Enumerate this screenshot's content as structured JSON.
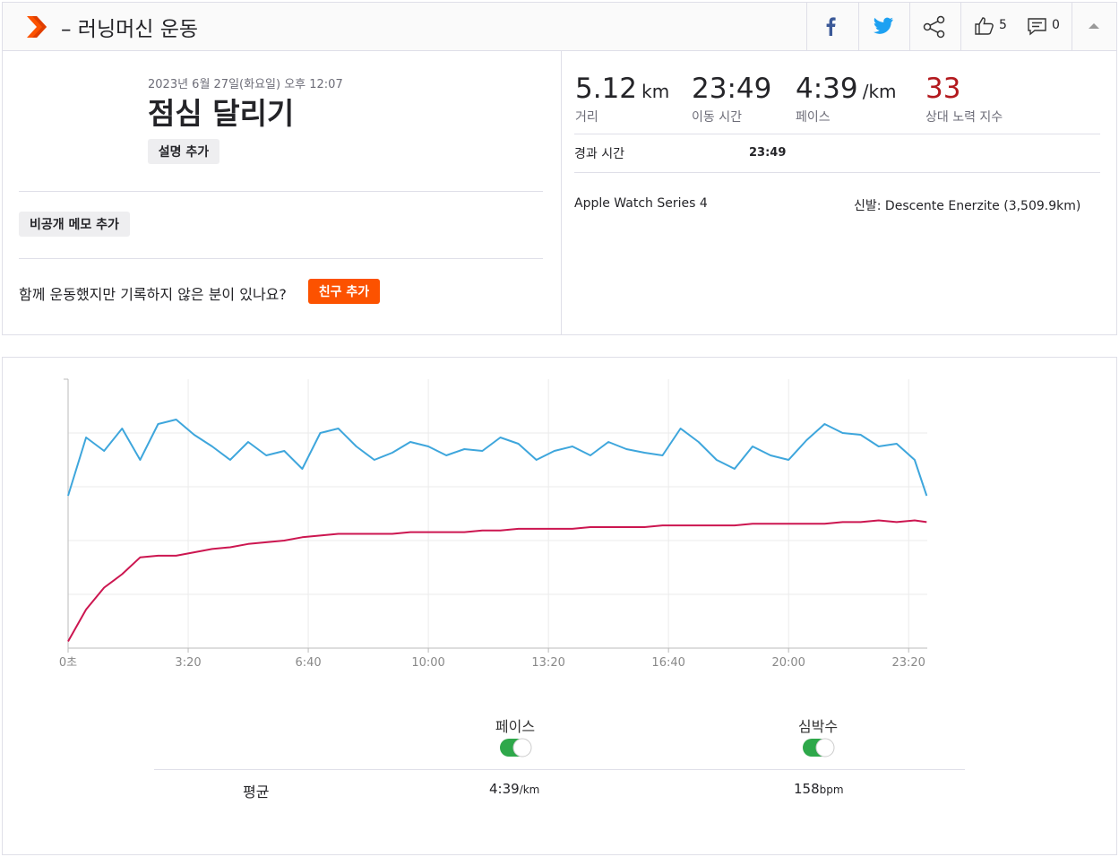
{
  "header": {
    "title": "– 러닝머신 운동",
    "likes": "5",
    "comments": "0"
  },
  "activity": {
    "date": "2023년 6월 27일(화요일) 오후 12:07",
    "name": "점심 달리기",
    "add_description": "설명 추가",
    "add_private_note": "비공개 메모 추가",
    "friends_prompt": "함께 운동했지만 기록하지 않은 분이 있나요?",
    "add_friend": "친구 추가"
  },
  "stats": [
    {
      "value": "5.12",
      "unit": "km",
      "label": "거리"
    },
    {
      "value": "23:49",
      "label": "이동 시간"
    },
    {
      "value": "4:39",
      "unit": "/km",
      "label": "페이스"
    },
    {
      "value": "33",
      "label": "상대 노력 지수"
    }
  ],
  "elapsed": {
    "label": "경과 시간",
    "value": "23:49"
  },
  "device": "Apple Watch Series 4",
  "shoes": "신발: Descente Enerzite (3,509.9km)",
  "chart_data": {
    "type": "line",
    "x": [
      0,
      30,
      60,
      90,
      120,
      150,
      180,
      210,
      240,
      270,
      300,
      330,
      360,
      390,
      420,
      450,
      480,
      510,
      540,
      570,
      600,
      630,
      660,
      690,
      720,
      750,
      780,
      810,
      840,
      870,
      900,
      930,
      960,
      990,
      1020,
      1050,
      1080,
      1110,
      1140,
      1170,
      1200,
      1230,
      1260,
      1290,
      1320,
      1350,
      1380,
      1410,
      1430
    ],
    "xlim": [
      0,
      1431
    ],
    "xticks": [
      {
        "value": 0,
        "label": "0초"
      },
      {
        "value": 200,
        "label": "3:20"
      },
      {
        "value": 400,
        "label": "6:40"
      },
      {
        "value": 600,
        "label": "10:00"
      },
      {
        "value": 800,
        "label": "13:20"
      },
      {
        "value": 1000,
        "label": "16:40"
      },
      {
        "value": 1200,
        "label": "20:00"
      },
      {
        "value": 1400,
        "label": "23:20"
      }
    ],
    "ylim": [
      90,
      250
    ],
    "y2lim": [
      500,
      200
    ],
    "grid": true,
    "series": [
      {
        "name": "페이스",
        "color": "#3ea6dc",
        "axis": "y2",
        "values": [
          330,
          265,
          280,
          255,
          290,
          250,
          245,
          262,
          275,
          290,
          270,
          285,
          280,
          300,
          260,
          255,
          275,
          290,
          282,
          270,
          275,
          285,
          278,
          280,
          265,
          272,
          290,
          280,
          275,
          285,
          270,
          278,
          282,
          285,
          255,
          270,
          290,
          300,
          275,
          285,
          290,
          268,
          250,
          260,
          262,
          275,
          272,
          290,
          330
        ]
      },
      {
        "name": "심박수",
        "color": "#cc1650",
        "values": [
          94,
          113,
          126,
          134,
          144,
          145,
          145,
          147,
          149,
          150,
          152,
          153,
          154,
          156,
          157,
          158,
          158,
          158,
          158,
          159,
          159,
          159,
          159,
          160,
          160,
          161,
          161,
          161,
          161,
          162,
          162,
          162,
          162,
          163,
          163,
          163,
          163,
          163,
          164,
          164,
          164,
          164,
          164,
          165,
          165,
          166,
          165,
          166,
          165
        ]
      }
    ]
  },
  "summary": {
    "label": "평균",
    "items": [
      {
        "value": "4:39",
        "unit": "/km"
      },
      {
        "value": "158",
        "unit": "bpm"
      }
    ]
  }
}
